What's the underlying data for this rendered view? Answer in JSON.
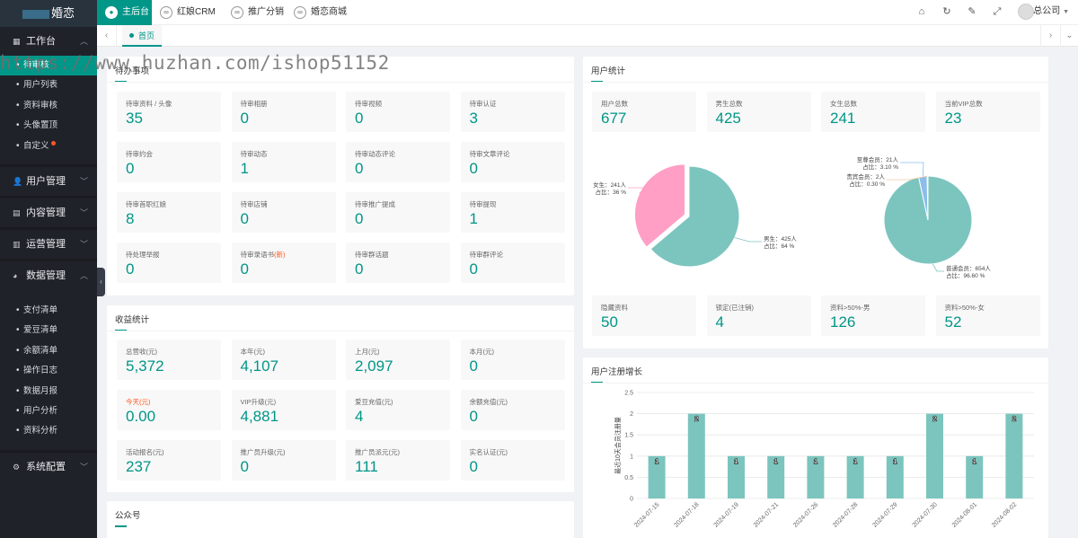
{
  "brand": {
    "logo_text": "婚恋"
  },
  "sidebar": {
    "workbench": {
      "label": "工作台"
    },
    "workbench_items": [
      {
        "label": "待审核"
      },
      {
        "label": "用户列表"
      },
      {
        "label": "资料审核"
      },
      {
        "label": "头像置顶"
      },
      {
        "label": "自定义"
      }
    ],
    "user_mgmt": {
      "label": "用户管理"
    },
    "content_mgmt": {
      "label": "内容管理"
    },
    "ops_mgmt": {
      "label": "运营管理"
    },
    "data_mgmt": {
      "label": "数据管理"
    },
    "data_items": [
      {
        "label": "支付清单"
      },
      {
        "label": "爱豆清单"
      },
      {
        "label": "余额清单"
      },
      {
        "label": "操作日志"
      },
      {
        "label": "数据月报"
      },
      {
        "label": "用户分析"
      },
      {
        "label": "资料分析"
      }
    ],
    "system_config": {
      "label": "系统配置"
    }
  },
  "topbar": {
    "tabs": [
      {
        "label": "主后台"
      },
      {
        "label": "红娘CRM"
      },
      {
        "label": "推广分销"
      },
      {
        "label": "婚恋商城"
      }
    ],
    "icons": [
      "home-icon",
      "refresh-icon",
      "theme-icon",
      "fullscreen-icon"
    ],
    "user": {
      "name": "总公司"
    }
  },
  "tabstrip": {
    "home": "首页"
  },
  "watermark": "https://www.huzhan.com/ishop51152",
  "pending": {
    "title": "待办事项",
    "items": [
      {
        "label": "待审资料 / 头像",
        "value": "35"
      },
      {
        "label": "待审相册",
        "value": "0"
      },
      {
        "label": "待审视频",
        "value": "0"
      },
      {
        "label": "待审认证",
        "value": "3"
      },
      {
        "label": "待审约会",
        "value": "0"
      },
      {
        "label": "待审动态",
        "value": "1"
      },
      {
        "label": "待审动态评论",
        "value": "0"
      },
      {
        "label": "待审文章评论",
        "value": "0"
      },
      {
        "label": "待审首职红娘",
        "value": "8"
      },
      {
        "label": "待审店铺",
        "value": "0"
      },
      {
        "label": "待审推广提成",
        "value": "0"
      },
      {
        "label": "待审提现",
        "value": "1"
      },
      {
        "label": "待处理举报",
        "value": "0"
      },
      {
        "label": "待审录语书",
        "highlight": "(新)",
        "value": "0"
      },
      {
        "label": "待审群话题",
        "value": "0"
      },
      {
        "label": "待审群评论",
        "value": "0"
      }
    ]
  },
  "income": {
    "title": "收益统计",
    "items": [
      {
        "label": "总营收(元)",
        "value": "5,372",
        "orange": false
      },
      {
        "label": "本年(元)",
        "value": "4,107",
        "orange": false
      },
      {
        "label": "上月(元)",
        "value": "2,097",
        "orange": false
      },
      {
        "label": "本月(元)",
        "value": "0",
        "orange": false
      },
      {
        "label": "今天(元)",
        "value": "0.00",
        "orange": true
      },
      {
        "label": "VIP升级(元)",
        "value": "4,881",
        "orange": false
      },
      {
        "label": "爱豆充值(元)",
        "value": "4",
        "orange": false
      },
      {
        "label": "余额充值(元)",
        "value": "0",
        "orange": false
      },
      {
        "label": "活动报名(元)",
        "value": "237",
        "orange": false
      },
      {
        "label": "推广员升级(元)",
        "value": "0",
        "orange": false
      },
      {
        "label": "推广员派元(元)",
        "value": "111",
        "orange": false
      },
      {
        "label": "实名认证(元)",
        "value": "0",
        "orange": false
      }
    ]
  },
  "official": {
    "title": "公众号"
  },
  "user_stats": {
    "title": "用户统计",
    "top": [
      {
        "label": "用户总数",
        "value": "677"
      },
      {
        "label": "男生总数",
        "value": "425"
      },
      {
        "label": "女生总数",
        "value": "241"
      },
      {
        "label": "当前VIP总数",
        "value": "23"
      }
    ],
    "bottom": [
      {
        "label": "隐藏资料",
        "value": "50"
      },
      {
        "label": "锁定(已注销)",
        "value": "4"
      },
      {
        "label": "资料>50%-男",
        "value": "126"
      },
      {
        "label": "资料>50%-女",
        "value": "52"
      }
    ],
    "pie_gender": {
      "colors": [
        "#7cc5be",
        "#ff9fc6"
      ],
      "slices": [
        {
          "name": "男生",
          "count": "425人",
          "pct": "64 %",
          "value": 425
        },
        {
          "name": "女生",
          "count": "241人",
          "pct": "36 %",
          "value": 241
        }
      ],
      "ratio_label": "占比"
    },
    "pie_member": {
      "colors": [
        "#7cc5be",
        "#8cbdeb",
        "#f2c9a0"
      ],
      "slices": [
        {
          "name": "普通会员",
          "count": "654人",
          "pct": "96.60 %",
          "value": 654
        },
        {
          "name": "至尊会员",
          "count": "21人",
          "pct": "3.10 %",
          "value": 21
        },
        {
          "name": "贵宾会员",
          "count": "2人",
          "pct": "0.30 %",
          "value": 2
        }
      ],
      "ratio_label": "占比"
    }
  },
  "reg_growth": {
    "title": "用户注册增长"
  },
  "chart_data": {
    "type": "bar",
    "title": "",
    "xlabel": "",
    "ylabel": "最近10天会员注册量",
    "categories": [
      "2024-07-15",
      "2024-07-18",
      "2024-07-19",
      "2024-07-21",
      "2024-07-26",
      "2024-07-28",
      "2024-07-29",
      "2024-07-30",
      "2024-08-01",
      "2024-08-02"
    ],
    "values": [
      1,
      2,
      1,
      1,
      1,
      1,
      1,
      2,
      1,
      2
    ],
    "ylim": [
      0,
      2.5
    ],
    "yticks": [
      "0",
      "0.5",
      "1",
      "1.5",
      "2",
      "2.5"
    ],
    "color": "#7cc5be",
    "grid": true
  }
}
